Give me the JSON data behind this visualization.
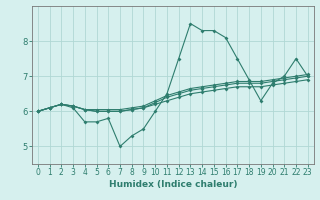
{
  "x": [
    0,
    1,
    2,
    3,
    4,
    5,
    6,
    7,
    8,
    9,
    10,
    11,
    12,
    13,
    14,
    15,
    16,
    17,
    18,
    19,
    20,
    21,
    22,
    23
  ],
  "line1": [
    6.0,
    6.1,
    6.2,
    6.1,
    5.7,
    5.7,
    5.8,
    5.0,
    5.3,
    5.5,
    6.0,
    6.5,
    7.5,
    8.5,
    8.3,
    8.3,
    8.1,
    7.5,
    6.9,
    6.3,
    6.8,
    7.0,
    7.5,
    7.0
  ],
  "line2": [
    6.0,
    6.1,
    6.2,
    6.15,
    6.05,
    6.0,
    6.0,
    6.0,
    6.05,
    6.1,
    6.2,
    6.3,
    6.4,
    6.5,
    6.55,
    6.6,
    6.65,
    6.7,
    6.7,
    6.7,
    6.75,
    6.8,
    6.85,
    6.9
  ],
  "line3": [
    6.0,
    6.1,
    6.2,
    6.15,
    6.05,
    6.0,
    6.0,
    6.0,
    6.05,
    6.1,
    6.25,
    6.4,
    6.5,
    6.6,
    6.65,
    6.7,
    6.75,
    6.8,
    6.8,
    6.8,
    6.85,
    6.9,
    6.95,
    7.0
  ],
  "line4": [
    6.0,
    6.1,
    6.2,
    6.15,
    6.05,
    6.05,
    6.05,
    6.05,
    6.1,
    6.15,
    6.3,
    6.45,
    6.55,
    6.65,
    6.7,
    6.75,
    6.8,
    6.85,
    6.85,
    6.85,
    6.9,
    6.95,
    7.0,
    7.05
  ],
  "line_color": "#2e7d6e",
  "bg_color": "#d6f0ee",
  "grid_color": "#b0d8d4",
  "xlabel": "Humidex (Indice chaleur)",
  "xlabel_fontsize": 6.5,
  "tick_fontsize": 5.5,
  "yticks": [
    5,
    6,
    7,
    8
  ],
  "ylim": [
    4.5,
    9.0
  ],
  "xlim": [
    -0.5,
    23.5
  ]
}
